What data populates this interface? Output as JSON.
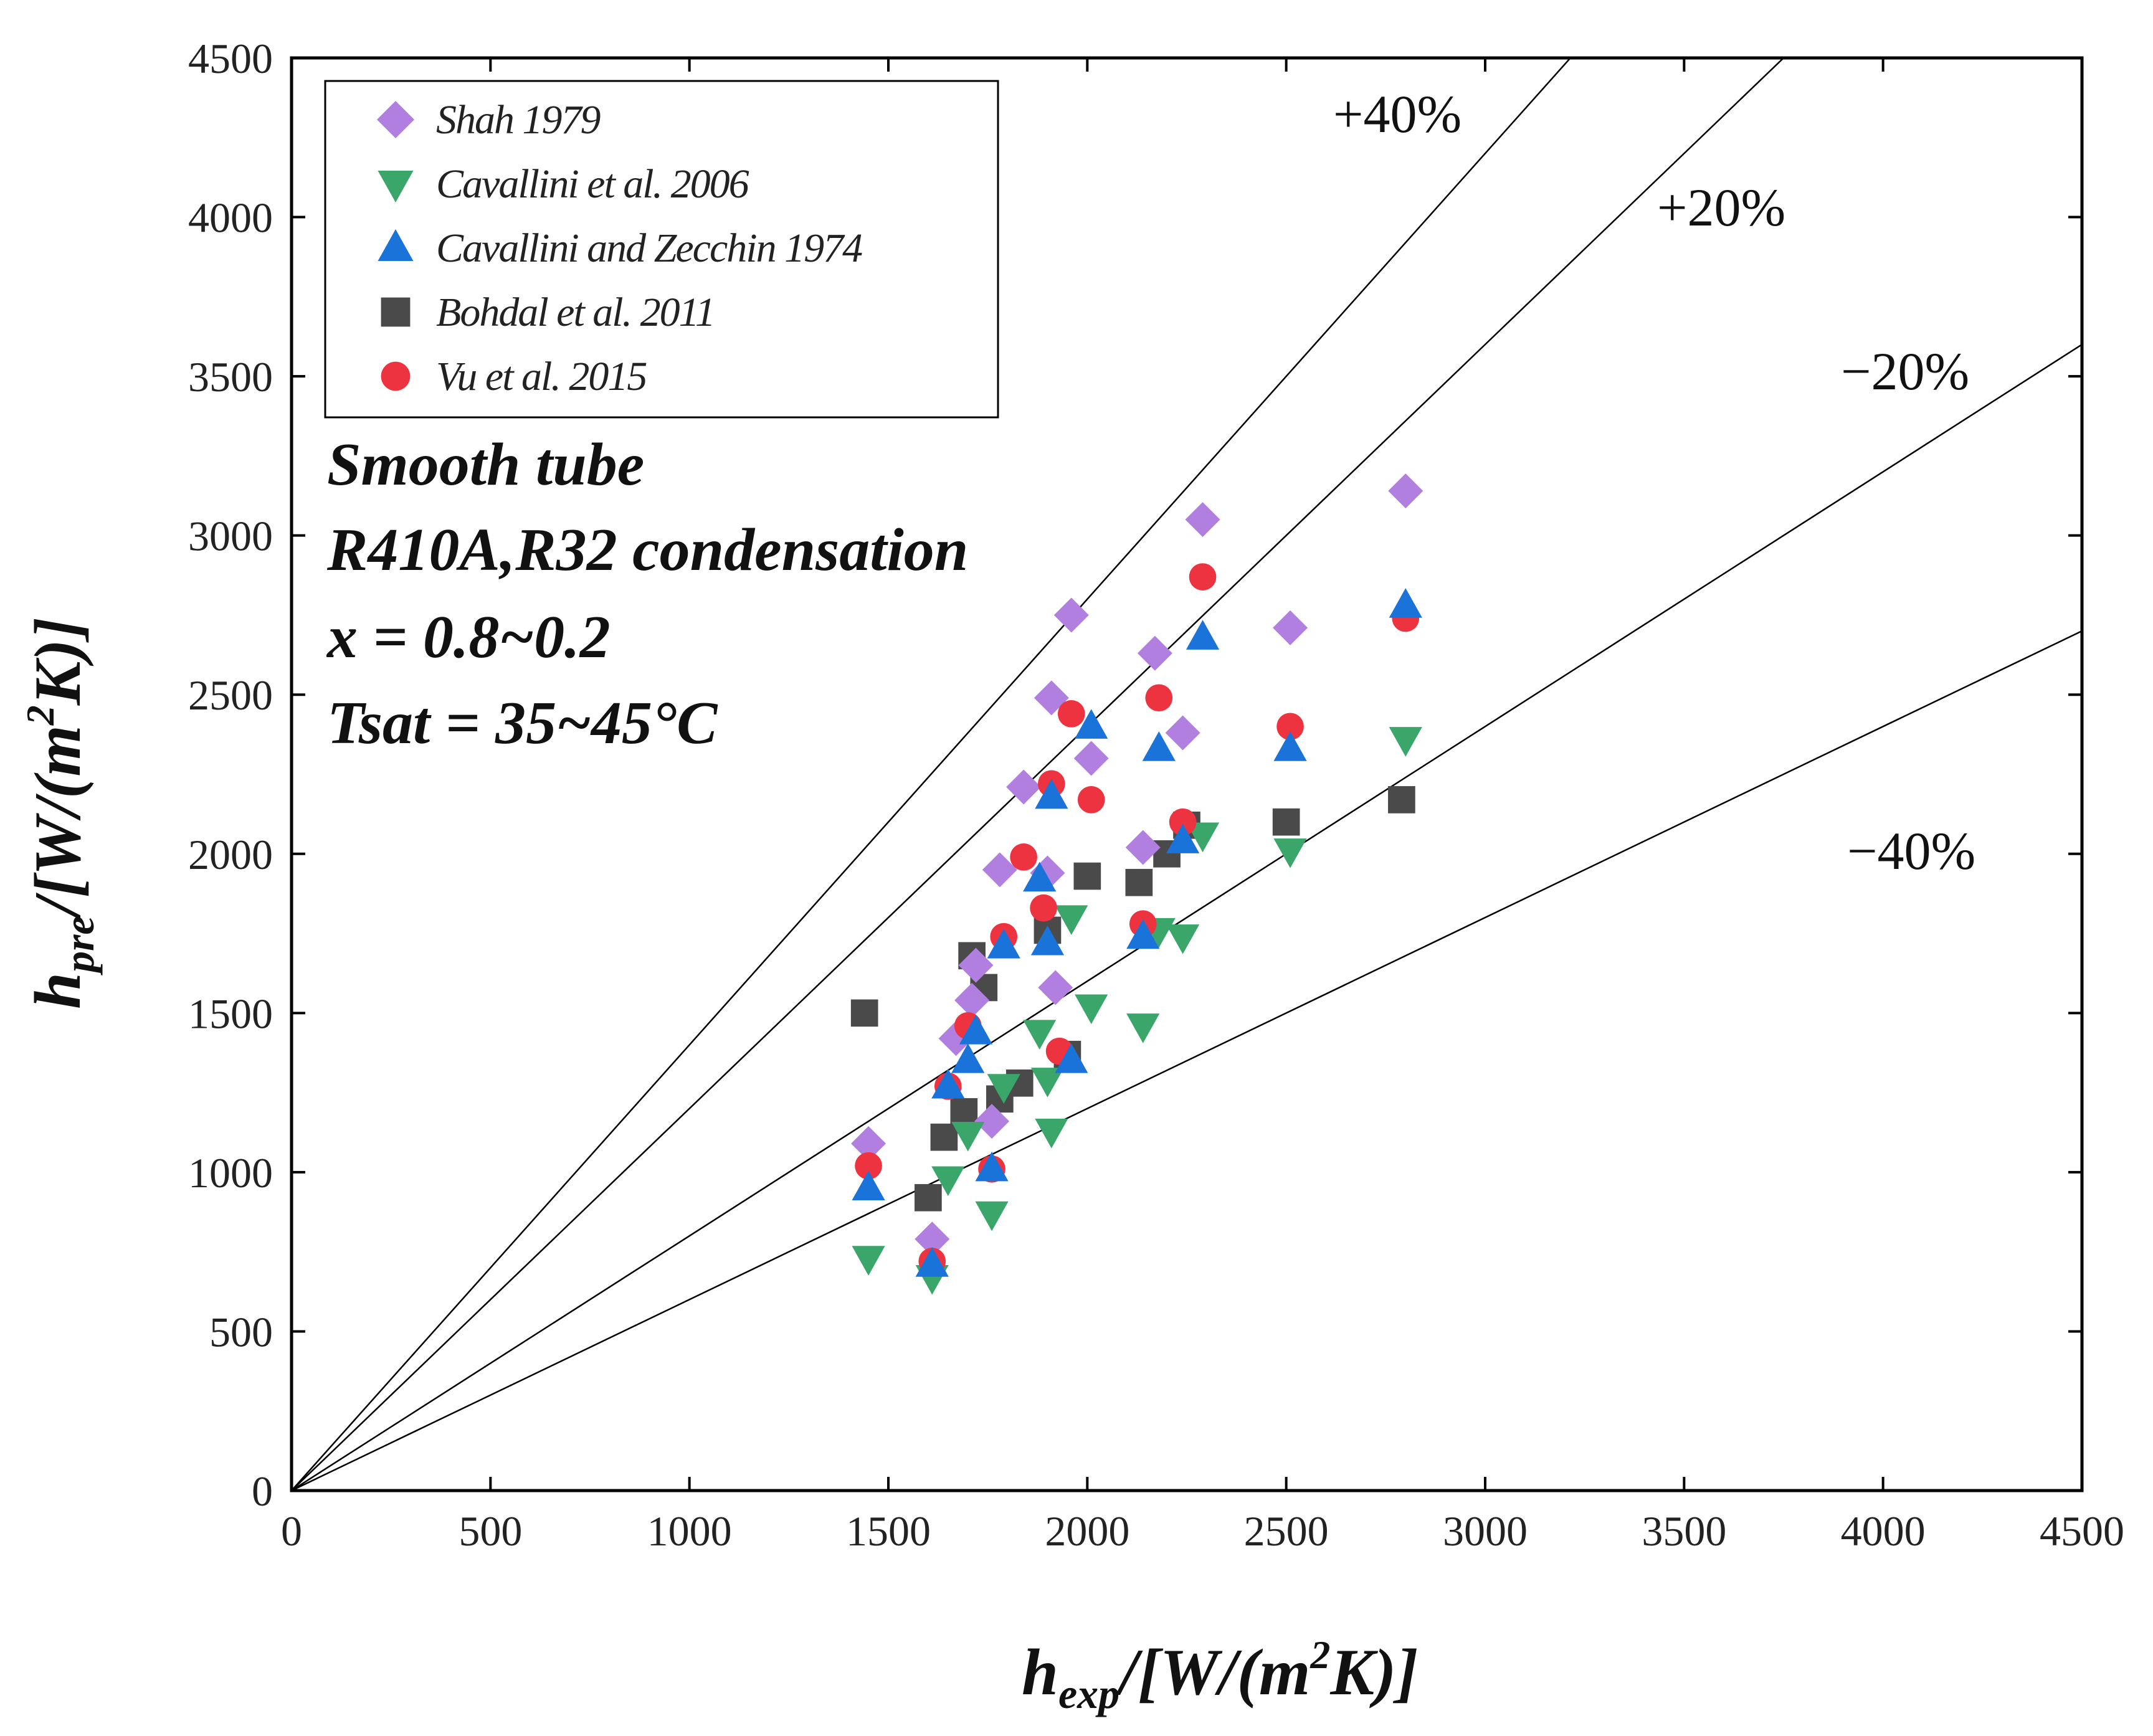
{
  "chart_data": {
    "type": "scatter",
    "x_axis": {
      "label_main": "h",
      "label_sub": "exp",
      "label_unit_pre": "/[W/(m",
      "label_unit_sup": "2",
      "label_unit_post": "K)]",
      "lim": [
        0,
        4500
      ],
      "ticks": [
        0,
        500,
        1000,
        1500,
        2000,
        2500,
        3000,
        3500,
        4000,
        4500
      ]
    },
    "y_axis": {
      "label_main": "h",
      "label_sub": "pre",
      "label_unit_pre": "/[W/(m",
      "label_unit_sup": "2",
      "label_unit_post": "K)]",
      "lim": [
        0,
        4500
      ],
      "ticks": [
        0,
        500,
        1000,
        1500,
        2000,
        2500,
        3000,
        3500,
        4000,
        4500
      ]
    },
    "reference_lines": [
      {
        "label": "+40%",
        "slope": 1.4
      },
      {
        "label": "+20%",
        "slope": 1.2
      },
      {
        "label": "−20%",
        "slope": 0.8
      },
      {
        "label": "−40%",
        "slope": 0.6
      }
    ],
    "annotations": [
      "Smooth tube",
      "R410A,R32 condensation",
      "x = 0.8~0.2",
      "Tsat = 35~45°C"
    ],
    "legend_position": "top-left",
    "series": [
      {
        "name": "Shah 1979",
        "marker": "diamond",
        "color": "#b07fe0",
        "x": [
          1450,
          1610,
          1670,
          1710,
          1720,
          1760,
          1780,
          1840,
          1900,
          1910,
          1920,
          1960,
          2010,
          2140,
          2170,
          2240,
          2290,
          2510,
          2800
        ],
        "y": [
          1090,
          790,
          1420,
          1540,
          1650,
          1160,
          1950,
          2210,
          1940,
          2490,
          1580,
          2750,
          2300,
          2020,
          2630,
          2380,
          3050,
          2710,
          3140
        ]
      },
      {
        "name": "Cavallini et al. 2006",
        "marker": "triangle-down",
        "color": "#3aa66a",
        "x": [
          1450,
          1610,
          1650,
          1700,
          1760,
          1790,
          1880,
          1900,
          1910,
          1960,
          2010,
          2140,
          2180,
          2240,
          2290,
          2510,
          2800
        ],
        "y": [
          730,
          670,
          980,
          1120,
          870,
          1270,
          1440,
          1290,
          1130,
          1800,
          1520,
          1460,
          1760,
          1740,
          2060,
          2010,
          2360
        ]
      },
      {
        "name": "Cavallini and Zecchin 1974",
        "marker": "triangle-up",
        "color": "#1a73d9",
        "x": [
          1450,
          1610,
          1650,
          1700,
          1720,
          1760,
          1790,
          1880,
          1900,
          1910,
          1960,
          2010,
          2140,
          2180,
          2240,
          2290,
          2510,
          2800
        ],
        "y": [
          950,
          710,
          1270,
          1350,
          1440,
          1010,
          1710,
          1920,
          1720,
          2180,
          1350,
          2400,
          1740,
          2330,
          2040,
          2680,
          2330,
          2780
        ]
      },
      {
        "name": "Bohdal et al. 2011",
        "marker": "square",
        "color": "#4a4a4a",
        "x": [
          1440,
          1600,
          1640,
          1690,
          1710,
          1740,
          1780,
          1830,
          1900,
          1950,
          2000,
          2130,
          2200,
          2250,
          2500,
          2790
        ],
        "y": [
          1500,
          920,
          1110,
          1190,
          1680,
          1580,
          1230,
          1280,
          1760,
          1370,
          1930,
          1910,
          2000,
          2090,
          2100,
          2170
        ]
      },
      {
        "name": "Vu et al. 2015",
        "marker": "circle",
        "color": "#ee3340",
        "x": [
          1450,
          1610,
          1650,
          1700,
          1760,
          1790,
          1840,
          1890,
          1910,
          1930,
          1960,
          2010,
          2140,
          2180,
          2240,
          2290,
          2510,
          2800
        ],
        "y": [
          1020,
          720,
          1270,
          1460,
          1010,
          1740,
          1990,
          1830,
          2220,
          1380,
          2440,
          2170,
          1780,
          2490,
          2100,
          2870,
          2400,
          2740
        ]
      }
    ]
  }
}
